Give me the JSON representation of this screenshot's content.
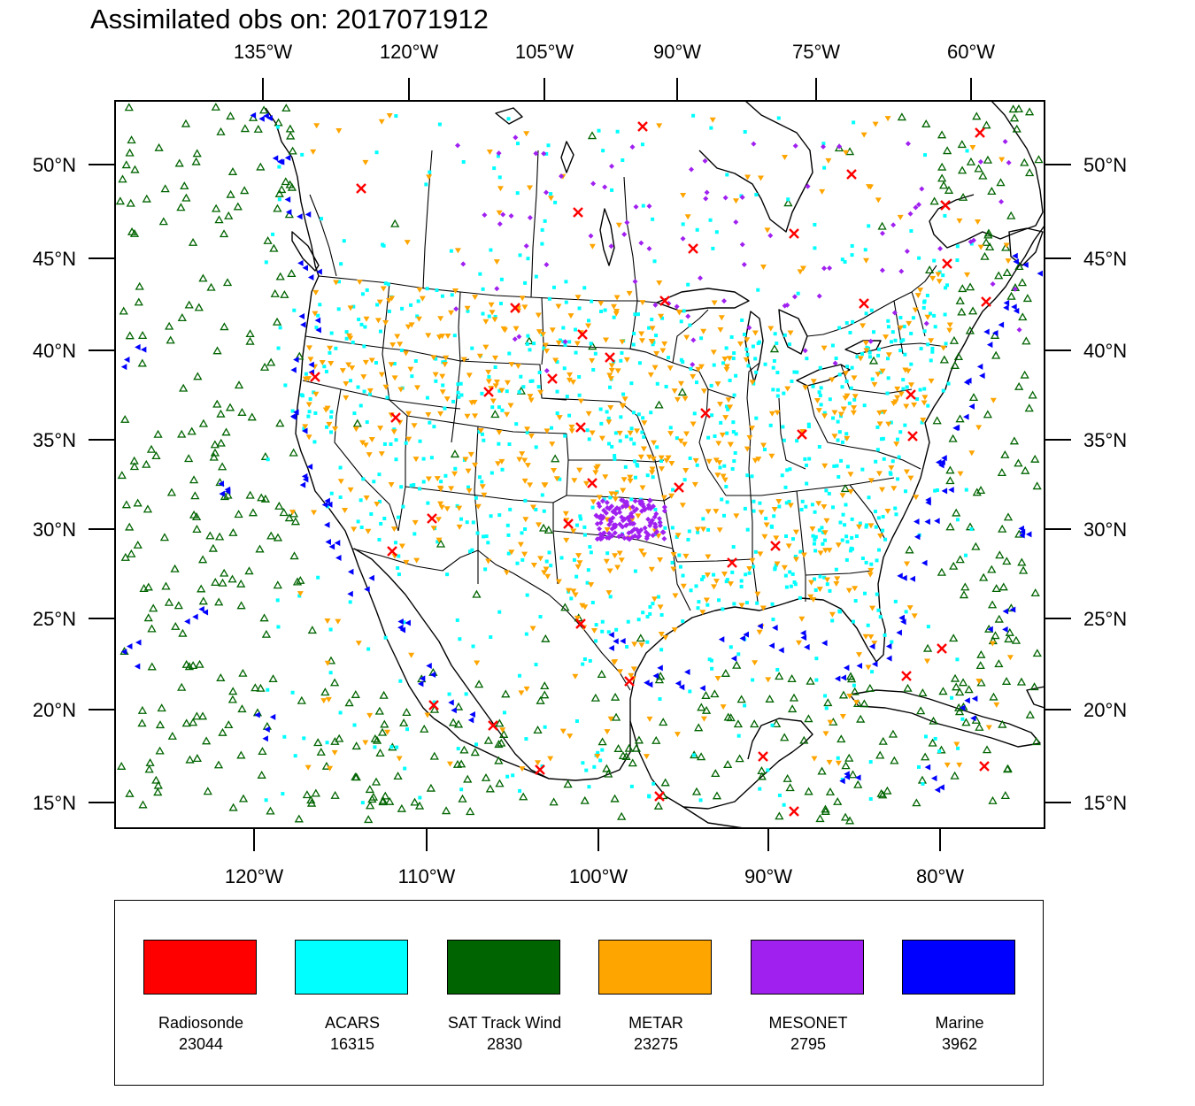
{
  "title": "Assimilated obs on: 2017071912",
  "map": {
    "projection": "Lambert Conformal",
    "top_lon_labels": [
      "135°W",
      "120°W",
      "105°W",
      "90°W",
      "75°W",
      "60°W"
    ],
    "bottom_lon_labels": [
      "120°W",
      "110°W",
      "100°W",
      "90°W",
      "80°W"
    ],
    "lat_labels": [
      "50°N",
      "45°N",
      "40°N",
      "35°N",
      "30°N",
      "25°N",
      "20°N",
      "15°N"
    ],
    "colors": {
      "radiosonde": "#ff0000",
      "acars": "#00ffff",
      "sat_track_wind": "#006400",
      "metar": "#ffa500",
      "mesonet": "#a020f0",
      "marine": "#0000ff"
    }
  },
  "legend": [
    {
      "label": "Radiosonde",
      "count": "23044",
      "color": "#ff0000",
      "marker": "x"
    },
    {
      "label": "ACARS",
      "count": "16315",
      "color": "#00ffff",
      "marker": "square"
    },
    {
      "label": "SAT Track Wind",
      "count": "2830",
      "color": "#006400",
      "marker": "triangle-open"
    },
    {
      "label": "METAR",
      "count": "23275",
      "color": "#ffa500",
      "marker": "triangle-down"
    },
    {
      "label": "MESONET",
      "count": "2795",
      "color": "#a020f0",
      "marker": "diamond"
    },
    {
      "label": "Marine",
      "count": "3962",
      "color": "#0000ff",
      "marker": "triangle-left"
    }
  ]
}
